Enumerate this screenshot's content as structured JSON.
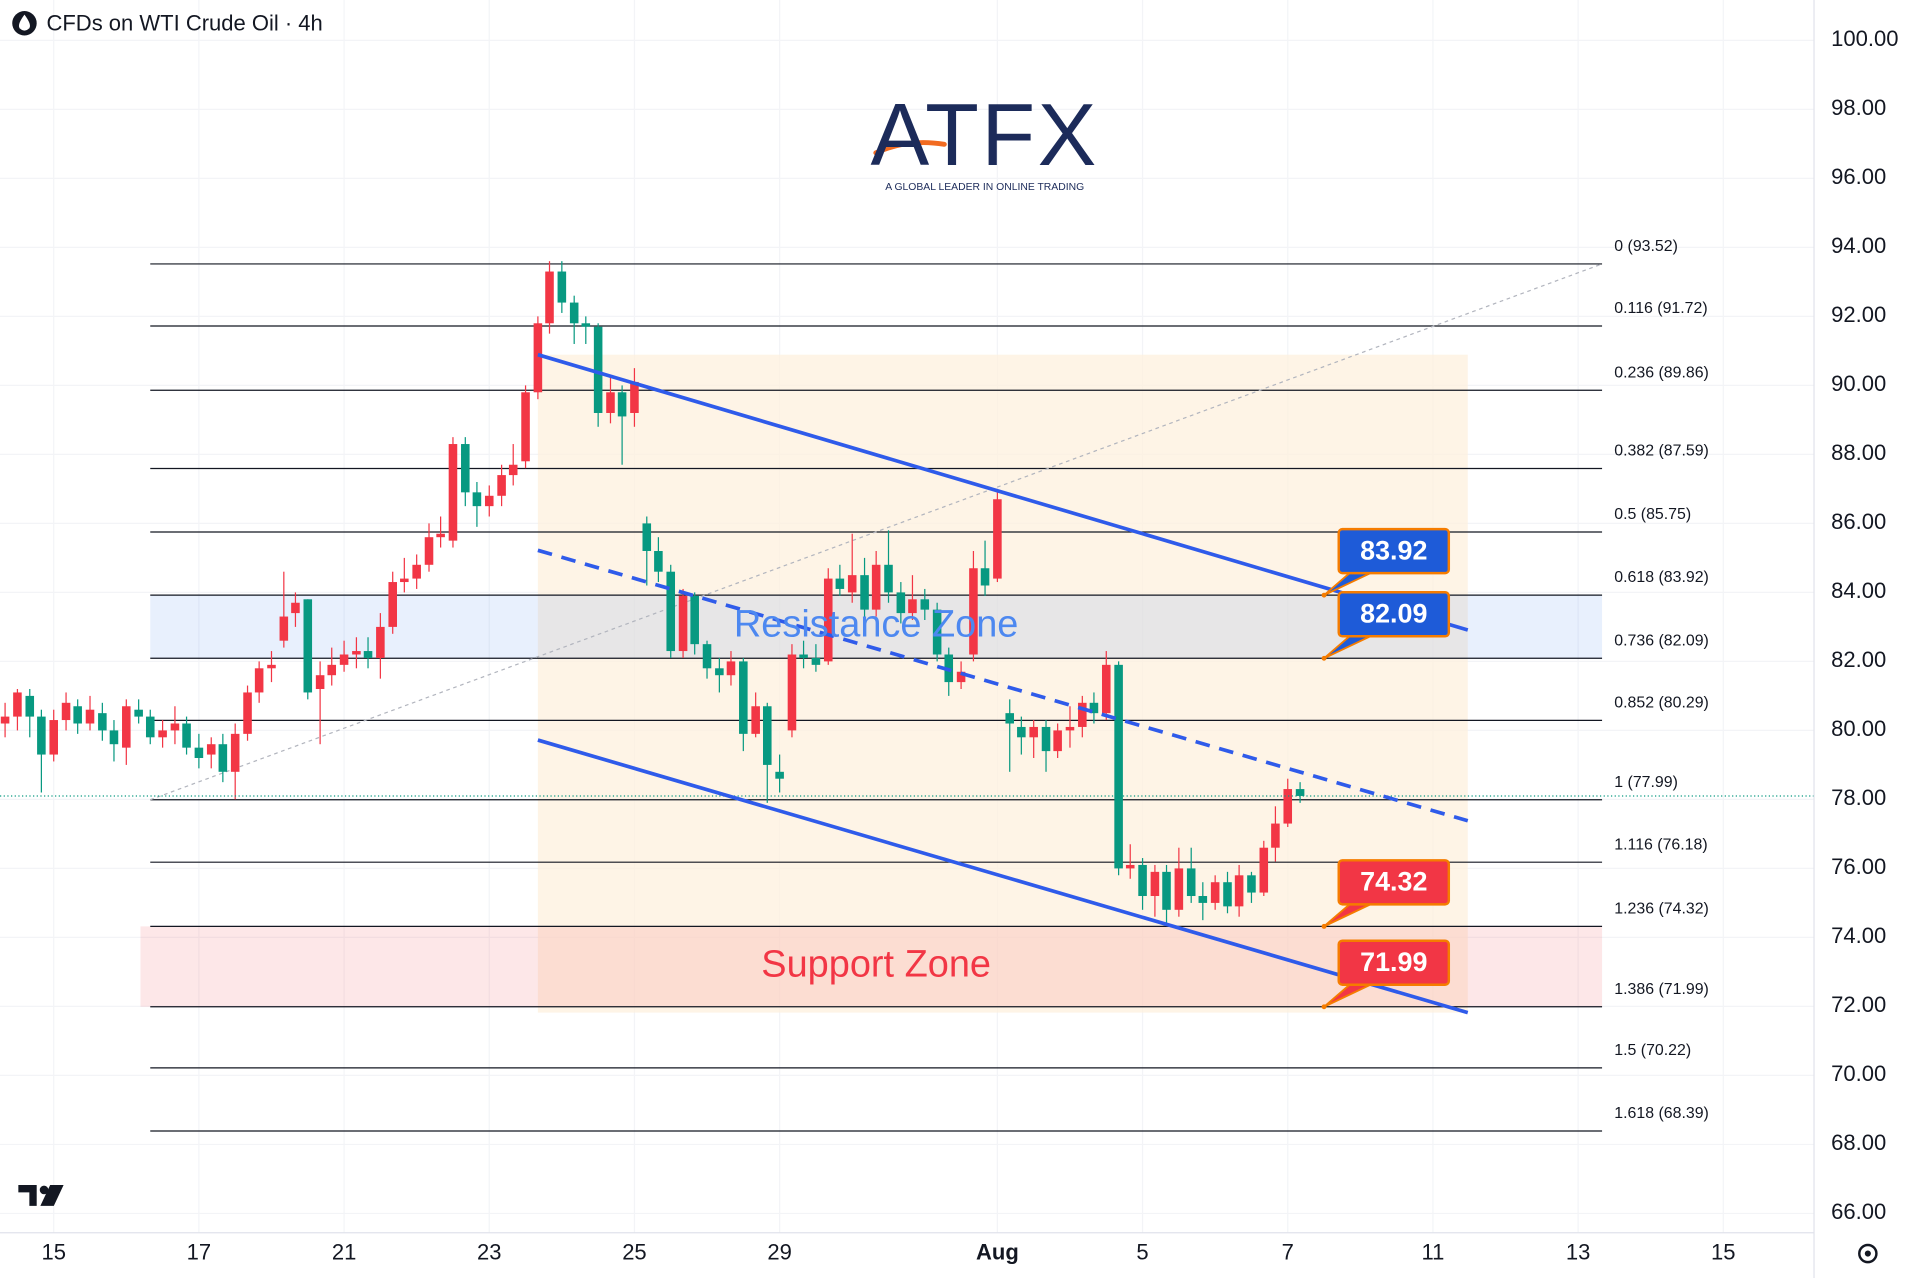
{
  "chart_data": {
    "type": "candlestick",
    "title": "CFDs on WTI Crude Oil · 4h",
    "x": [
      -0.67,
      -0.5,
      -0.33,
      -0.17,
      0,
      0.17,
      0.33,
      0.5,
      0.67,
      0.83,
      1,
      1.17,
      1.33,
      1.5,
      1.67,
      1.83,
      2,
      2.17,
      2.33,
      2.5,
      2.67,
      2.83,
      3,
      3.17,
      3.33,
      3.5,
      3.67,
      3.83,
      4,
      4.17,
      4.33,
      4.5,
      4.67,
      4.83,
      5,
      5.17,
      5.33,
      5.5,
      5.67,
      5.83,
      6,
      6.17,
      6.33,
      6.5,
      6.67,
      6.83,
      7,
      7.17,
      7.33,
      7.5,
      7.67,
      7.83,
      8,
      8.17,
      8.33,
      8.5,
      8.67,
      8.83,
      9,
      9.17,
      9.33,
      9.5,
      9.67,
      9.83,
      10,
      10.17,
      10.33,
      10.5,
      10.67,
      10.83,
      11,
      11.17,
      11.33,
      11.5,
      11.67,
      11.83,
      12,
      12.17,
      12.33,
      12.5,
      12.67,
      12.83,
      13,
      13.17,
      13.33,
      13.5,
      13.67,
      13.83,
      14,
      14.17,
      14.33,
      14.5,
      14.67,
      14.83,
      15,
      15.17,
      15.33,
      15.5,
      15.67,
      15.83,
      16,
      16.17,
      16.33,
      16.5,
      16.67,
      16.83,
      17,
      17.17
    ],
    "open": [
      80.2,
      80.4,
      81.0,
      80.4,
      79.3,
      80.3,
      80.7,
      80.2,
      80.5,
      80.0,
      79.5,
      80.6,
      80.4,
      79.8,
      80.0,
      80.2,
      79.5,
      79.3,
      79.6,
      78.8,
      79.9,
      81.1,
      81.8,
      82.6,
      83.4,
      83.8,
      81.2,
      81.6,
      81.9,
      82.2,
      82.3,
      82.1,
      83.0,
      84.3,
      84.4,
      84.8,
      85.6,
      85.5,
      88.3,
      86.9,
      86.5,
      86.8,
      87.4,
      87.8,
      89.8,
      91.8,
      93.3,
      92.4,
      91.8,
      91.7,
      89.2,
      89.8,
      89.2,
      86.0,
      85.2,
      84.6,
      82.3,
      83.9,
      82.5,
      81.8,
      81.6,
      82.0,
      79.9,
      80.7,
      78.8,
      80.0,
      82.2,
      82.1,
      82.0,
      84.4,
      84.0,
      84.5,
      83.5,
      84.8,
      84.0,
      83.4,
      83.8,
      83.5,
      82.2,
      81.4,
      82.2,
      84.7,
      84.4,
      80.5,
      80.1,
      79.8,
      80.1,
      79.4,
      80.0,
      80.1,
      80.8,
      80.5,
      81.9,
      76.0,
      76.1,
      75.2,
      75.9,
      74.8,
      76.0,
      75.2,
      75.0,
      75.6,
      74.9,
      75.8,
      75.3,
      76.6,
      77.3,
      78.3
    ],
    "high": [
      80.8,
      81.2,
      81.2,
      80.6,
      80.6,
      81.1,
      80.9,
      81.0,
      80.8,
      80.3,
      80.9,
      80.9,
      80.6,
      80.3,
      80.7,
      80.4,
      79.9,
      79.8,
      79.9,
      80.2,
      81.3,
      82.0,
      82.3,
      84.6,
      84.0,
      83.8,
      82.0,
      82.4,
      82.6,
      82.7,
      82.7,
      83.4,
      84.6,
      85.0,
      85.1,
      86.0,
      86.2,
      88.5,
      88.5,
      87.2,
      87.1,
      87.7,
      88.3,
      90.0,
      92.0,
      93.6,
      93.6,
      92.6,
      92.0,
      91.8,
      90.3,
      90.0,
      90.5,
      86.2,
      85.6,
      84.8,
      84.1,
      84.0,
      82.6,
      82.1,
      82.3,
      82.1,
      81.1,
      80.8,
      79.3,
      82.5,
      82.6,
      82.5,
      84.7,
      84.8,
      85.7,
      85.0,
      85.2,
      85.8,
      84.3,
      84.5,
      84.1,
      83.7,
      82.4,
      82.0,
      85.2,
      85.5,
      87.0,
      80.9,
      80.4,
      80.3,
      80.3,
      80.2,
      80.7,
      81.0,
      81.1,
      82.3,
      82.0,
      76.7,
      76.3,
      76.1,
      76.1,
      76.6,
      76.6,
      75.6,
      75.8,
      75.9,
      76.1,
      75.9,
      76.8,
      77.8,
      78.6,
      78.5
    ],
    "low": [
      79.8,
      80.0,
      79.8,
      78.2,
      79.1,
      80.0,
      79.9,
      80.0,
      79.7,
      79.1,
      79.0,
      80.2,
      79.6,
      79.5,
      79.6,
      79.3,
      78.9,
      78.9,
      78.5,
      78.0,
      79.7,
      80.8,
      81.4,
      82.4,
      83.0,
      80.9,
      79.6,
      81.3,
      81.7,
      81.8,
      81.8,
      81.5,
      82.8,
      84.0,
      84.1,
      84.6,
      85.3,
      85.3,
      86.5,
      85.9,
      86.2,
      86.5,
      87.1,
      87.6,
      89.6,
      91.5,
      92.1,
      91.2,
      91.2,
      88.8,
      88.9,
      87.7,
      88.8,
      84.2,
      84.3,
      82.1,
      82.1,
      82.2,
      81.5,
      81.1,
      81.3,
      79.4,
      79.8,
      77.9,
      78.2,
      79.8,
      81.8,
      81.7,
      81.9,
      83.9,
      83.7,
      83.2,
      83.3,
      83.7,
      83.1,
      83.2,
      83.2,
      82.0,
      81.0,
      81.2,
      82.0,
      83.9,
      84.3,
      78.8,
      79.3,
      79.2,
      78.8,
      79.2,
      79.5,
      79.8,
      80.2,
      80.3,
      75.8,
      75.7,
      74.8,
      74.6,
      74.4,
      74.6,
      75.0,
      74.5,
      74.8,
      74.7,
      74.6,
      75.0,
      75.2,
      76.2,
      77.2,
      77.9
    ],
    "close": [
      80.4,
      81.1,
      80.4,
      79.3,
      80.3,
      80.8,
      80.2,
      80.6,
      80.0,
      79.6,
      80.7,
      80.4,
      79.8,
      80.0,
      80.2,
      79.5,
      79.2,
      79.6,
      78.8,
      79.9,
      81.1,
      81.8,
      81.9,
      83.3,
      83.7,
      81.1,
      81.6,
      81.9,
      82.2,
      82.3,
      82.1,
      83.0,
      84.3,
      84.4,
      84.8,
      85.6,
      85.7,
      88.3,
      86.9,
      86.5,
      86.8,
      87.4,
      87.7,
      89.8,
      91.8,
      93.3,
      92.4,
      91.8,
      91.7,
      89.2,
      89.8,
      89.1,
      90.1,
      85.2,
      84.6,
      82.3,
      83.9,
      82.5,
      81.8,
      81.6,
      82.0,
      79.9,
      80.7,
      79.0,
      78.6,
      82.2,
      82.1,
      81.9,
      84.4,
      84.1,
      84.5,
      83.5,
      84.8,
      84.0,
      83.4,
      83.8,
      83.5,
      82.2,
      81.4,
      81.7,
      84.7,
      84.2,
      86.7,
      80.2,
      79.8,
      80.1,
      79.4,
      80.0,
      80.1,
      80.8,
      80.5,
      81.9,
      76.0,
      76.1,
      75.2,
      75.9,
      74.8,
      76.0,
      75.2,
      75.0,
      75.6,
      74.9,
      75.8,
      75.3,
      76.6,
      77.3,
      78.3,
      78.1
    ],
    "up_color": "#f23645",
    "down_color": "#089981",
    "xlim": [
      -0.74,
      24.25
    ],
    "xticks": [
      {
        "value": 0,
        "label": "15"
      },
      {
        "value": 2,
        "label": "17"
      },
      {
        "value": 4,
        "label": "21"
      },
      {
        "value": 6,
        "label": "23"
      },
      {
        "value": 8,
        "label": "25"
      },
      {
        "value": 10,
        "label": "29"
      },
      {
        "value": 13,
        "label": "Aug"
      },
      {
        "value": 15,
        "label": "5"
      },
      {
        "value": 17,
        "label": "7"
      },
      {
        "value": 19,
        "label": "11"
      },
      {
        "value": 21,
        "label": "13"
      },
      {
        "value": 23,
        "label": "15"
      }
    ],
    "ylim": [
      65.44,
      101.17
    ],
    "yticks": [
      {
        "value": 66,
        "label": "66.00"
      },
      {
        "value": 68,
        "label": "68.00"
      },
      {
        "value": 70,
        "label": "70.00"
      },
      {
        "value": 72,
        "label": "72.00"
      },
      {
        "value": 74,
        "label": "74.00"
      },
      {
        "value": 76,
        "label": "76.00"
      },
      {
        "value": 78,
        "label": "78.00"
      },
      {
        "value": 80,
        "label": "80.00"
      },
      {
        "value": 82,
        "label": "82.00"
      },
      {
        "value": 84,
        "label": "84.00"
      },
      {
        "value": 86,
        "label": "86.00"
      },
      {
        "value": 88,
        "label": "88.00"
      },
      {
        "value": 90,
        "label": "90.00"
      },
      {
        "value": 92,
        "label": "92.00"
      },
      {
        "value": 94,
        "label": "94.00"
      },
      {
        "value": 96,
        "label": "96.00"
      },
      {
        "value": 98,
        "label": "98.00"
      },
      {
        "value": 100,
        "label": "100.00"
      }
    ],
    "grid": true,
    "fibonacci": {
      "x": [
        1.33,
        21.33
      ],
      "color": "#131722",
      "levels": [
        {
          "label": "0 (93.52)",
          "value": 93.52
        },
        {
          "label": "0.116 (91.72)",
          "value": 91.72
        },
        {
          "label": "0.236 (89.86)",
          "value": 89.86
        },
        {
          "label": "0.382 (87.59)",
          "value": 87.59
        },
        {
          "label": "0.5 (85.75)",
          "value": 85.75
        },
        {
          "label": "0.618 (83.92)",
          "value": 83.92
        },
        {
          "label": "0.736 (82.09)",
          "value": 82.09
        },
        {
          "label": "0.852 (80.29)",
          "value": 80.29
        },
        {
          "label": "1 (77.99)",
          "value": 77.99
        },
        {
          "label": "1.116 (76.18)",
          "value": 76.18
        },
        {
          "label": "1.236 (74.32)",
          "value": 74.32
        },
        {
          "label": "1.386 (71.99)",
          "value": 71.99
        },
        {
          "label": "1.5 (70.22)",
          "value": 70.22
        },
        {
          "label": "1.618 (68.39)",
          "value": 68.39
        }
      ]
    },
    "trendlines": [
      {
        "x": [
          6.67,
          19.48
        ],
        "y": [
          90.89,
          82.91
        ],
        "style": "solid",
        "color": "#2f5bea"
      },
      {
        "x": [
          6.67,
          19.48
        ],
        "y": [
          85.22,
          77.38
        ],
        "style": "dashed",
        "color": "#2f5bea"
      },
      {
        "x": [
          6.67,
          19.48
        ],
        "y": [
          79.72,
          71.82
        ],
        "style": "solid",
        "color": "#2f5bea"
      }
    ],
    "zones": [
      {
        "label": "Resistance Zone",
        "from": 82.09,
        "to": 83.92,
        "color": "#4d88f0"
      },
      {
        "label": "Support Zone",
        "from": 71.99,
        "to": 74.32,
        "color": "#f23645"
      }
    ],
    "price_labels": [
      {
        "value": 83.92,
        "x": 17.5,
        "color": "#1e5bd8"
      },
      {
        "value": 82.09,
        "x": 17.5,
        "color": "#1e5bd8"
      },
      {
        "value": 74.32,
        "x": 17.5,
        "color": "#f23645"
      },
      {
        "value": 71.99,
        "x": 17.5,
        "color": "#f23645"
      }
    ]
  },
  "logo": {
    "text": "ATFX",
    "tagline": "A GLOBAL LEADER IN ONLINE TRADING"
  }
}
